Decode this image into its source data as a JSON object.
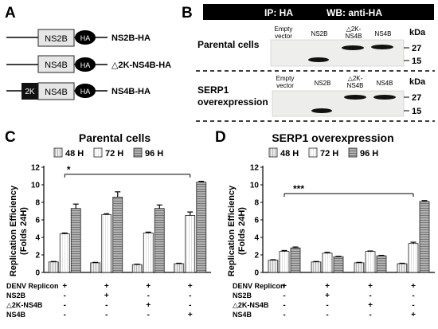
{
  "panels": {
    "a": {
      "letter": "A",
      "constructs": [
        {
          "left_box": "",
          "box": "NS2B",
          "tag": "HA",
          "label": "NS2B-HA"
        },
        {
          "left_box": "",
          "box": "NS4B",
          "tag": "HA",
          "label": "△2K-NS4B-HA"
        },
        {
          "left_box": "2K",
          "box": "NS4B",
          "tag": "HA",
          "label": "NS4B-HA"
        }
      ]
    },
    "b": {
      "letter": "B",
      "header_ip": "IP: HA",
      "header_wb": "WB: anti-HA",
      "kda": "kDa",
      "markers": [
        "27",
        "15"
      ],
      "blots": [
        {
          "row_label": "Parental cells",
          "lanes": [
            {
              "label_lines": [
                "Empty",
                "vector"
              ]
            },
            {
              "label_lines": [
                "NS2B"
              ]
            },
            {
              "label_lines": [
                "△2K-",
                "NS4B"
              ]
            },
            {
              "label_lines": [
                "NS4B"
              ]
            }
          ]
        },
        {
          "row_label_lines": [
            "SERP1",
            "overexpression"
          ],
          "lanes": [
            {
              "label_lines": [
                "Empty",
                "vector"
              ]
            },
            {
              "label_lines": [
                "NS2B"
              ]
            },
            {
              "label_lines": [
                "△2K-",
                "NS4B"
              ]
            },
            {
              "label_lines": [
                "NS4B"
              ]
            }
          ]
        }
      ]
    },
    "c": {
      "letter": "C"
    },
    "d": {
      "letter": "D"
    }
  },
  "treatment_table": {
    "row_labels": [
      "DENV Replicon",
      "NS2B",
      "△2K-NS4B",
      "NS4B"
    ],
    "groups": [
      [
        "+",
        "-",
        "-",
        "-"
      ],
      [
        "+",
        "+",
        "-",
        "-"
      ],
      [
        "+",
        "-",
        "+",
        "-"
      ],
      [
        "+",
        "-",
        "-",
        "+"
      ]
    ]
  },
  "chart_data": [
    {
      "type": "bar",
      "title": "Parental cells",
      "ylabel": "Replication Efficiency (Folds 24H)",
      "ylabel_lines": [
        "Replication Efficiency",
        "(Folds 24H)"
      ],
      "ylim": [
        0,
        12
      ],
      "yticks": [
        0,
        2,
        4,
        6,
        8,
        10,
        12
      ],
      "legend_position": "top",
      "categories": [
        "DENV Replicon",
        "DENV Replicon + NS2B",
        "DENV Replicon + △2K-NS4B",
        "DENV Replicon + NS4B"
      ],
      "series": [
        {
          "name": "48 H",
          "values": [
            1.2,
            1.1,
            0.9,
            1.0
          ],
          "errors": [
            0.05,
            0.05,
            0.05,
            0.05
          ]
        },
        {
          "name": "72 H",
          "values": [
            4.4,
            6.6,
            4.5,
            6.5
          ],
          "errors": [
            0.1,
            0.1,
            0.1,
            0.4
          ]
        },
        {
          "name": "96 H",
          "values": [
            7.3,
            8.6,
            7.3,
            10.3
          ],
          "errors": [
            0.5,
            0.6,
            0.4,
            0.1
          ]
        }
      ],
      "significance": [
        {
          "from_group": 0,
          "to_group": 3,
          "label": "*"
        }
      ],
      "colors": {
        "48 H": "#d9d9d9",
        "72 H": "#f6f6f6",
        "96 H": "#8c8c8c"
      }
    },
    {
      "type": "bar",
      "title": "SERP1 overexpression",
      "ylabel": "Replication Efficiency (Folds 24H)",
      "ylabel_lines": [
        "Replication Efficiency",
        "(Folds 24H)"
      ],
      "ylim": [
        0,
        12
      ],
      "yticks": [
        0,
        2,
        4,
        6,
        8,
        10,
        12
      ],
      "legend_position": "top",
      "categories": [
        "DENV Replicon",
        "DENV Replicon + NS2B",
        "DENV Replicon + △2K-NS4B",
        "DENV Replicon + NS4B"
      ],
      "series": [
        {
          "name": "48 H",
          "values": [
            1.4,
            1.2,
            1.1,
            1.0
          ],
          "errors": [
            0.05,
            0.05,
            0.05,
            0.05
          ]
        },
        {
          "name": "72 H",
          "values": [
            2.4,
            2.2,
            2.4,
            3.3
          ],
          "errors": [
            0.1,
            0.1,
            0.05,
            0.15
          ]
        },
        {
          "name": "96 H",
          "values": [
            2.8,
            1.8,
            1.9,
            8.1
          ],
          "errors": [
            0.1,
            0.05,
            0.05,
            0.1
          ]
        }
      ],
      "significance": [
        {
          "from_group": 0,
          "to_group": 3,
          "label": "***"
        }
      ],
      "colors": {
        "48 H": "#d9d9d9",
        "72 H": "#f6f6f6",
        "96 H": "#8c8c8c"
      }
    }
  ]
}
